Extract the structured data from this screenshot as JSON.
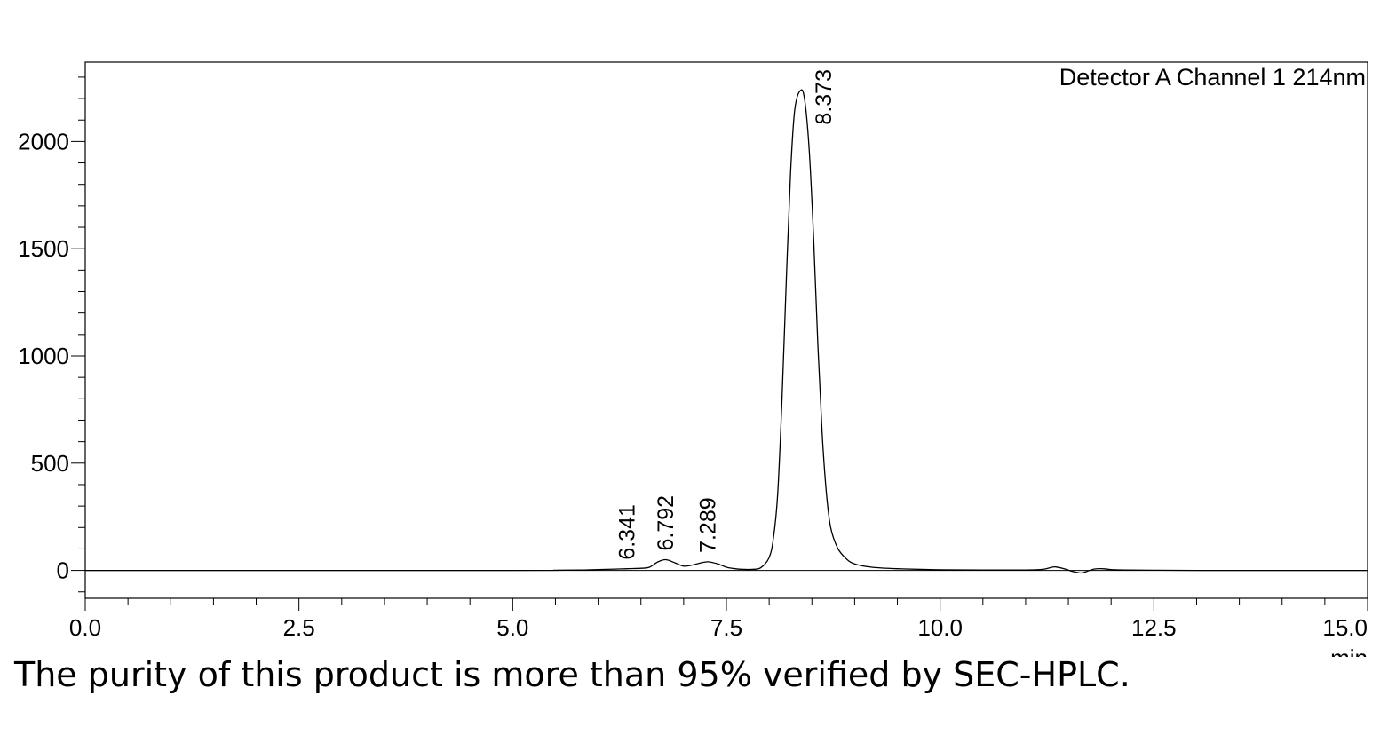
{
  "caption": "The purity of this product is more than 95% verified by SEC-HPLC.",
  "chart_data": {
    "type": "line",
    "legend": "Detector A Channel 1 214nm",
    "legend_placement": "top-right",
    "xlabel": "min",
    "ylabel": "",
    "xlim": [
      0,
      15
    ],
    "ylim": [
      -130,
      2370
    ],
    "grid": false,
    "x_ticks": [
      {
        "value": 0.0,
        "label": "0.0"
      },
      {
        "value": 2.5,
        "label": "2.5"
      },
      {
        "value": 5.0,
        "label": "5.0"
      },
      {
        "value": 7.5,
        "label": "7.5"
      },
      {
        "value": 10.0,
        "label": "10.0"
      },
      {
        "value": 12.5,
        "label": "12.5"
      },
      {
        "value": 15.0,
        "label": "15.0"
      }
    ],
    "y_ticks": [
      {
        "value": 0,
        "label": "0"
      },
      {
        "value": 500,
        "label": "500"
      },
      {
        "value": 1000,
        "label": "1000"
      },
      {
        "value": 1500,
        "label": "1500"
      },
      {
        "value": 2000,
        "label": "2000"
      }
    ],
    "peaks": [
      {
        "rt": 6.341,
        "label": "6.341",
        "height": 8
      },
      {
        "rt": 6.792,
        "label": "6.792",
        "height": 50
      },
      {
        "rt": 7.289,
        "label": "7.289",
        "height": 40
      },
      {
        "rt": 8.373,
        "label": "8.373",
        "height": 2240
      }
    ],
    "series": [
      {
        "x": [
          0,
          5.0,
          5.5,
          5.8,
          6.0,
          6.2,
          6.341,
          6.5,
          6.6,
          6.7,
          6.792,
          6.9,
          7.0,
          7.1,
          7.2,
          7.289,
          7.4,
          7.5,
          7.6,
          7.7,
          7.8,
          7.9,
          8.0,
          8.05,
          8.1,
          8.15,
          8.2,
          8.25,
          8.3,
          8.373,
          8.42,
          8.47,
          8.52,
          8.57,
          8.62,
          8.67,
          8.72,
          8.8,
          8.9,
          9.0,
          9.2,
          9.5,
          10.0,
          10.5,
          11.0,
          11.2,
          11.3,
          11.35,
          11.45,
          11.55,
          11.65,
          11.72,
          11.8,
          11.9,
          12.0,
          12.2,
          12.5,
          13.0,
          14.0,
          15.0
        ],
        "y": [
          0,
          0,
          1,
          2,
          4,
          6,
          8,
          10,
          15,
          40,
          50,
          35,
          20,
          25,
          35,
          40,
          30,
          15,
          8,
          5,
          5,
          12,
          60,
          150,
          360,
          800,
          1350,
          1850,
          2150,
          2240,
          2180,
          1950,
          1550,
          1050,
          640,
          360,
          200,
          105,
          55,
          30,
          15,
          8,
          3,
          2,
          2,
          5,
          14,
          16,
          8,
          -5,
          -12,
          -4,
          6,
          8,
          4,
          2,
          1,
          0,
          0,
          0
        ]
      }
    ]
  }
}
